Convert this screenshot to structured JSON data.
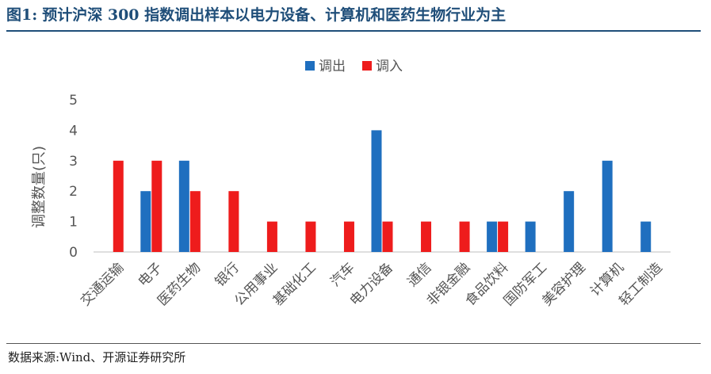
{
  "figure": {
    "number": "图1:",
    "title": "预计沪深 300 指数调出样本以电力设备、计算机和医药生物行业为主",
    "source": "数据来源:Wind、开源证券研究所"
  },
  "chart_data": {
    "type": "bar",
    "title": "",
    "xlabel": "",
    "ylabel": "调整数量(只)",
    "ylim": [
      0,
      5
    ],
    "yticks": [
      0,
      1,
      2,
      3,
      4,
      5
    ],
    "legend_position": "top-center",
    "grid": false,
    "categories": [
      "交通运输",
      "电子",
      "医药生物",
      "银行",
      "公用事业",
      "基础化工",
      "汽车",
      "电力设备",
      "通信",
      "非银金融",
      "食品饮料",
      "国防军工",
      "美容护理",
      "计算机",
      "轻工制造"
    ],
    "series": [
      {
        "name": "调出",
        "color": "#1f6fbf",
        "values": [
          0,
          2,
          3,
          0,
          0,
          0,
          0,
          4,
          0,
          0,
          1,
          1,
          2,
          3,
          1
        ]
      },
      {
        "name": "调入",
        "color": "#ee1c1c",
        "values": [
          3,
          3,
          2,
          2,
          1,
          1,
          1,
          1,
          1,
          1,
          1,
          0,
          0,
          0,
          0
        ]
      }
    ]
  }
}
